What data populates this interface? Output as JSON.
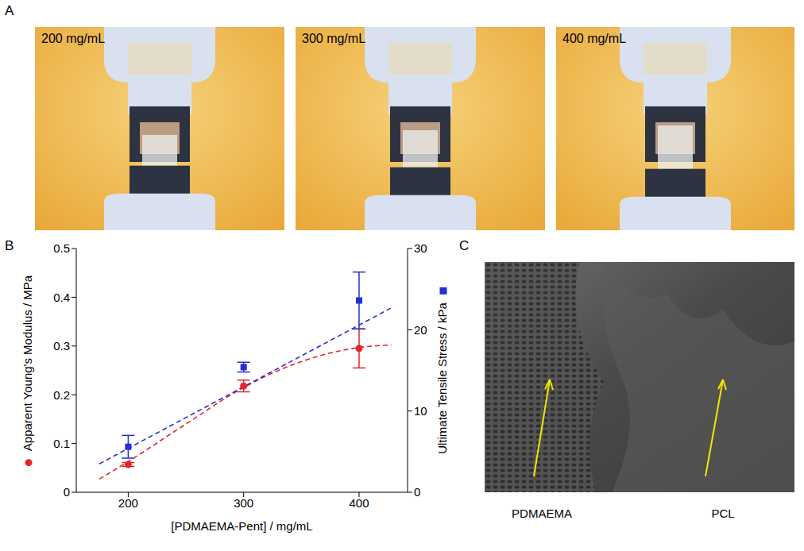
{
  "panels": {
    "A": {
      "label": "A",
      "captions": [
        "200 mg/mL",
        "300 mg/mL",
        "400 mg/mL"
      ]
    },
    "C": {
      "label": "C",
      "captions": [
        "PDMAEMA",
        "PCL"
      ]
    }
  },
  "chart_data": {
    "panel_label": "B",
    "type": "scatter",
    "xlabel": "[PDMAEMA-Pent] / mg/mL",
    "ylabel": "Apparent Young's Modulus / MPa",
    "y2label": "Ultimate Tensile Stress / kPa",
    "xlim": [
      155,
      442
    ],
    "xticks": [
      200,
      300,
      400
    ],
    "ylim": [
      0,
      0.5
    ],
    "yticks": [
      0,
      0.1,
      0.2,
      0.3,
      0.4,
      0.5
    ],
    "y2lim": [
      0,
      30
    ],
    "y2ticks": [
      0,
      10,
      20,
      30
    ],
    "grid": false,
    "series": [
      {
        "type": "scatter",
        "marker": "circle",
        "color": "#e3262b",
        "x": [
          200,
          300,
          400
        ],
        "values": [
          0.057,
          0.218,
          0.295
        ],
        "errors": [
          0.004,
          0.012,
          0.04
        ]
      },
      {
        "type": "scatter",
        "marker": "square",
        "color": "#2230d0",
        "axis": "y2",
        "x": [
          200,
          300,
          400
        ],
        "values": [
          5.6,
          15.4,
          23.6
        ],
        "errors": [
          1.4,
          0.6,
          3.5
        ]
      },
      {
        "type": "line",
        "line_style": "dashed",
        "color": "#e3262b",
        "x": [
          175,
          200,
          250,
          300,
          350,
          400,
          428
        ],
        "values": [
          0.027,
          0.063,
          0.14,
          0.215,
          0.268,
          0.297,
          0.302
        ]
      },
      {
        "type": "line",
        "line_style": "dashed",
        "color": "#2230d0",
        "axis": "y2",
        "x": [
          175,
          428
        ],
        "values": [
          3.5,
          22.7
        ]
      }
    ]
  }
}
